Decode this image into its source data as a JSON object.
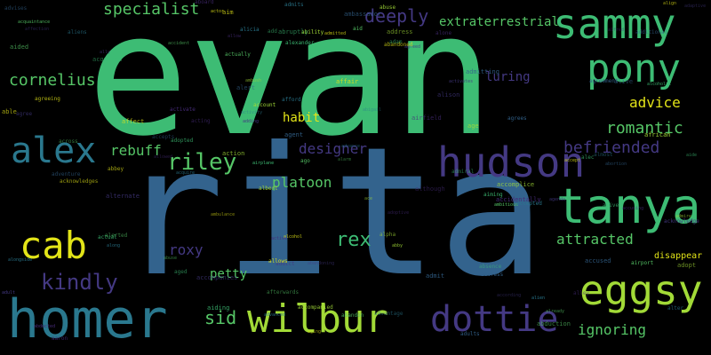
{
  "colors": {
    "background": "#000000",
    "green": "#3dbc74",
    "light_green": "#56c667",
    "teal": "#2a788e",
    "blue": "#33638d",
    "purple": "#443983",
    "dark_purple": "#472c7a",
    "yellow": "#e2e418",
    "lime": "#a2da37"
  },
  "words": {
    "evan": "evan",
    "rita": "rita",
    "sammy": "sammy",
    "pony": "pony",
    "hudson": "hudson",
    "tanya": "tanya",
    "alex": "alex",
    "homer": "homer",
    "wilbur": "wilbur",
    "dottie": "dottie",
    "eggsy": "eggsy",
    "cab": "cab",
    "riley": "riley",
    "kindly": "kindly",
    "cornelius": "cornelius",
    "deeply": "deeply",
    "specialist": "specialist",
    "extraterrestrial": "extraterrestrial",
    "romantic": "romantic",
    "befriended": "befriended",
    "advice": "advice",
    "rebuff": "rebuff",
    "designer": "designer",
    "platoon": "platoon",
    "rex": "rex",
    "roxy": "roxy",
    "petty": "petty",
    "sid": "sid",
    "attracted": "attracted",
    "ignoring": "ignoring",
    "habit": "habit",
    "luring": "luring",
    "disappear": "disappear"
  },
  "small_words": [
    "adam",
    "aid",
    "afford",
    "adventure",
    "alternate",
    "abducted",
    "aging",
    "alpha",
    "aide",
    "actually",
    "alicia",
    "abortion",
    "addict",
    "allowed",
    "alcohol",
    "action",
    "alec",
    "abuse",
    "alien",
    "accused",
    "agree",
    "active",
    "align",
    "ability",
    "alive",
    "already",
    "along",
    "agreement",
    "affection",
    "alley",
    "agreeing",
    "ambush",
    "acquires",
    "across",
    "admits",
    "agrees",
    "alison",
    "alfred",
    "actor",
    "albert",
    "alexander",
    "abandon",
    "alter",
    "actress",
    "acknowledge",
    "aaron",
    "allows",
    "accompanied",
    "airplane",
    "alerted",
    "abigail",
    "ambassador",
    "activates",
    "accusing",
    "affect",
    "address",
    "adopted",
    "acquaintance",
    "advantage",
    "accepts",
    "according",
    "acting",
    "affair",
    "african",
    "abruptly",
    "ambitious",
    "activity",
    "admit",
    "agreed",
    "airfield",
    "abandoned",
    "accomplice",
    "add",
    "airport",
    "almost",
    "alert",
    "adding",
    "although",
    "abbey",
    "ace",
    "admiral",
    "alarm",
    "aliens",
    "adults",
    "adult",
    "accidentally",
    "ambulance",
    "account",
    "actual",
    "accident",
    "acquire",
    "additional",
    "ally",
    "allow",
    "accept",
    "age",
    "aged",
    "ago",
    "advance",
    "admitting",
    "abandoning",
    "aboard",
    "aim",
    "abuse",
    "absence",
    "abduction",
    "advanced",
    "agent",
    "agenda",
    "alone",
    "acknowledges",
    "admire",
    "alcoholic",
    "afterwards",
    "alongside",
    "advises",
    "adaptive",
    "adoptive",
    "admitted",
    "abby",
    "aiding",
    "aided",
    "accepted",
    "alive",
    "accompanies",
    "activate",
    "able",
    "adopt",
    "aiming"
  ]
}
